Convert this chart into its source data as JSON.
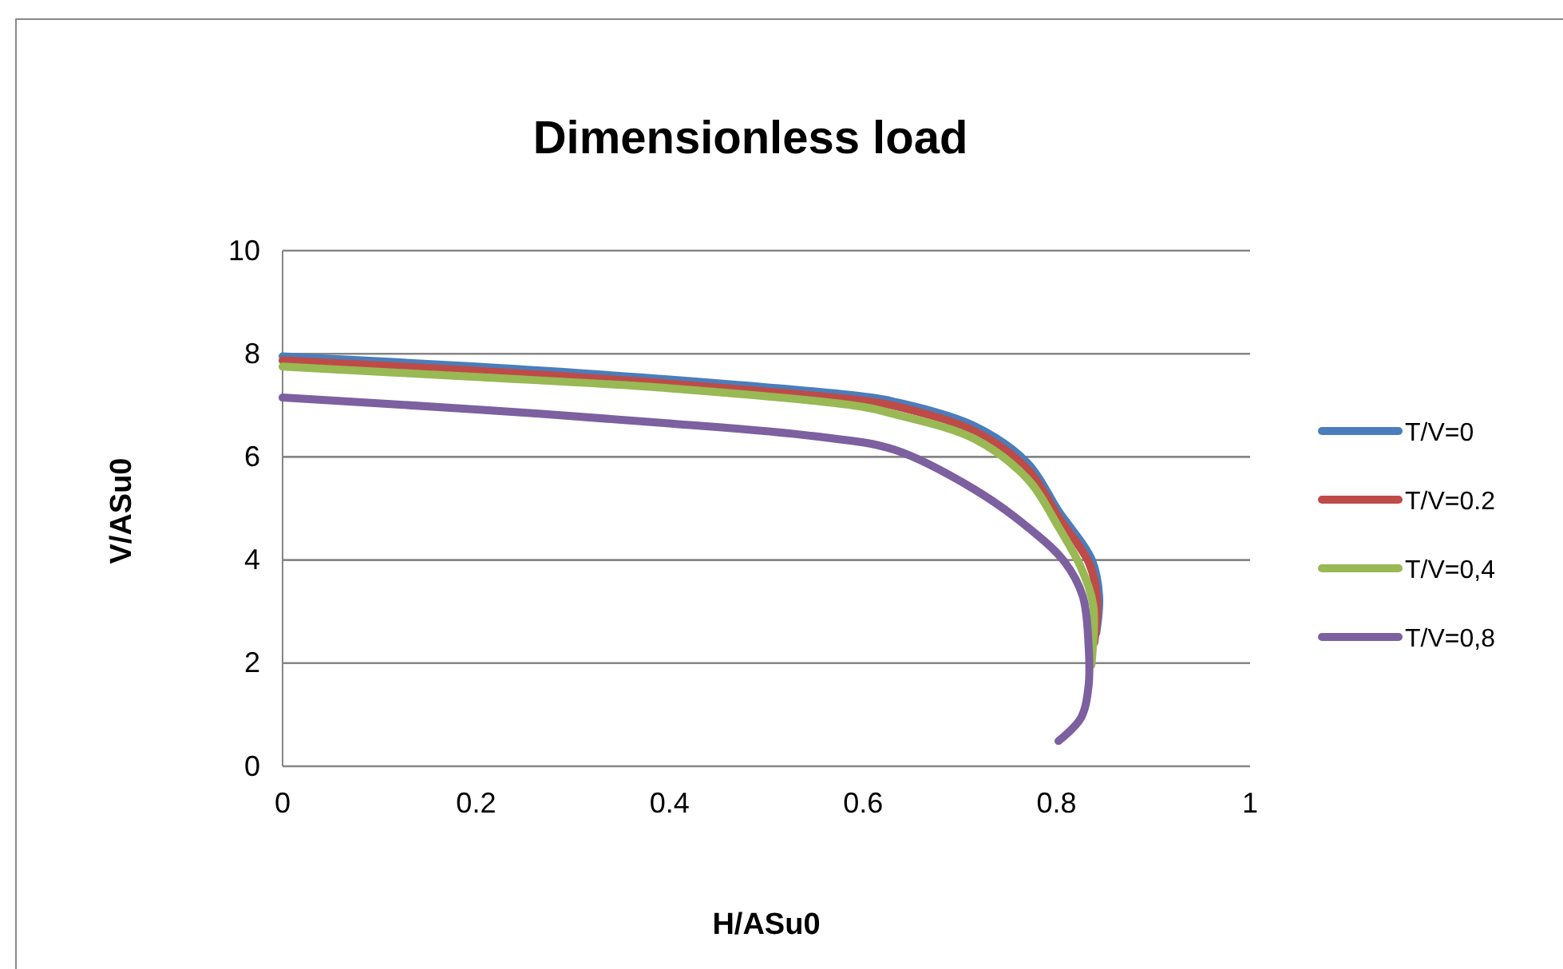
{
  "chart_data": {
    "type": "line",
    "title": "Dimensionless load",
    "xlabel": "H/ASu0",
    "ylabel": "V/ASu0",
    "xlim": [
      0,
      1
    ],
    "xticks": [
      0,
      0.2,
      0.4,
      0.6,
      0.8,
      1
    ],
    "ylim": [
      0,
      10
    ],
    "yticks": [
      0,
      2,
      4,
      6,
      8,
      10
    ],
    "grid": "y",
    "legend": "right",
    "marker": "none",
    "series": [
      {
        "name": "T/V=0",
        "color": "#4a7ebb",
        "x": [
          0,
          0.2,
          0.4,
          0.6,
          0.632,
          0.715,
          0.77,
          0.802,
          0.836,
          0.844,
          0.841
        ],
        "values": [
          7.95,
          7.75,
          7.5,
          7.17,
          7.07,
          6.6,
          5.88,
          4.95,
          4.02,
          3.3,
          2.58
        ]
      },
      {
        "name": "T/V=0.2",
        "color": "#be4b48",
        "x": [
          0,
          0.2,
          0.4,
          0.6,
          0.632,
          0.715,
          0.77,
          0.802,
          0.834,
          0.842,
          0.839
        ],
        "values": [
          7.87,
          7.67,
          7.42,
          7.09,
          6.99,
          6.5,
          5.76,
          4.83,
          3.92,
          3.2,
          2.4
        ]
      },
      {
        "name": "T/V=0,4",
        "color": "#98b954",
        "x": [
          0,
          0.2,
          0.4,
          0.6,
          0.632,
          0.715,
          0.77,
          0.802,
          0.826,
          0.838,
          0.836
        ],
        "values": [
          7.75,
          7.55,
          7.33,
          6.97,
          6.83,
          6.35,
          5.57,
          4.64,
          3.82,
          3.1,
          1.96
        ]
      },
      {
        "name": "T/V=0,8",
        "color": "#7d60a0",
        "x": [
          0,
          0.2,
          0.4,
          0.55,
          0.632,
          0.715,
          0.77,
          0.808,
          0.827,
          0.833,
          0.833,
          0.825,
          0.802
        ],
        "values": [
          7.15,
          6.92,
          6.65,
          6.4,
          6.14,
          5.37,
          4.64,
          3.97,
          3.3,
          2.37,
          1.55,
          0.93,
          0.49
        ]
      }
    ]
  }
}
